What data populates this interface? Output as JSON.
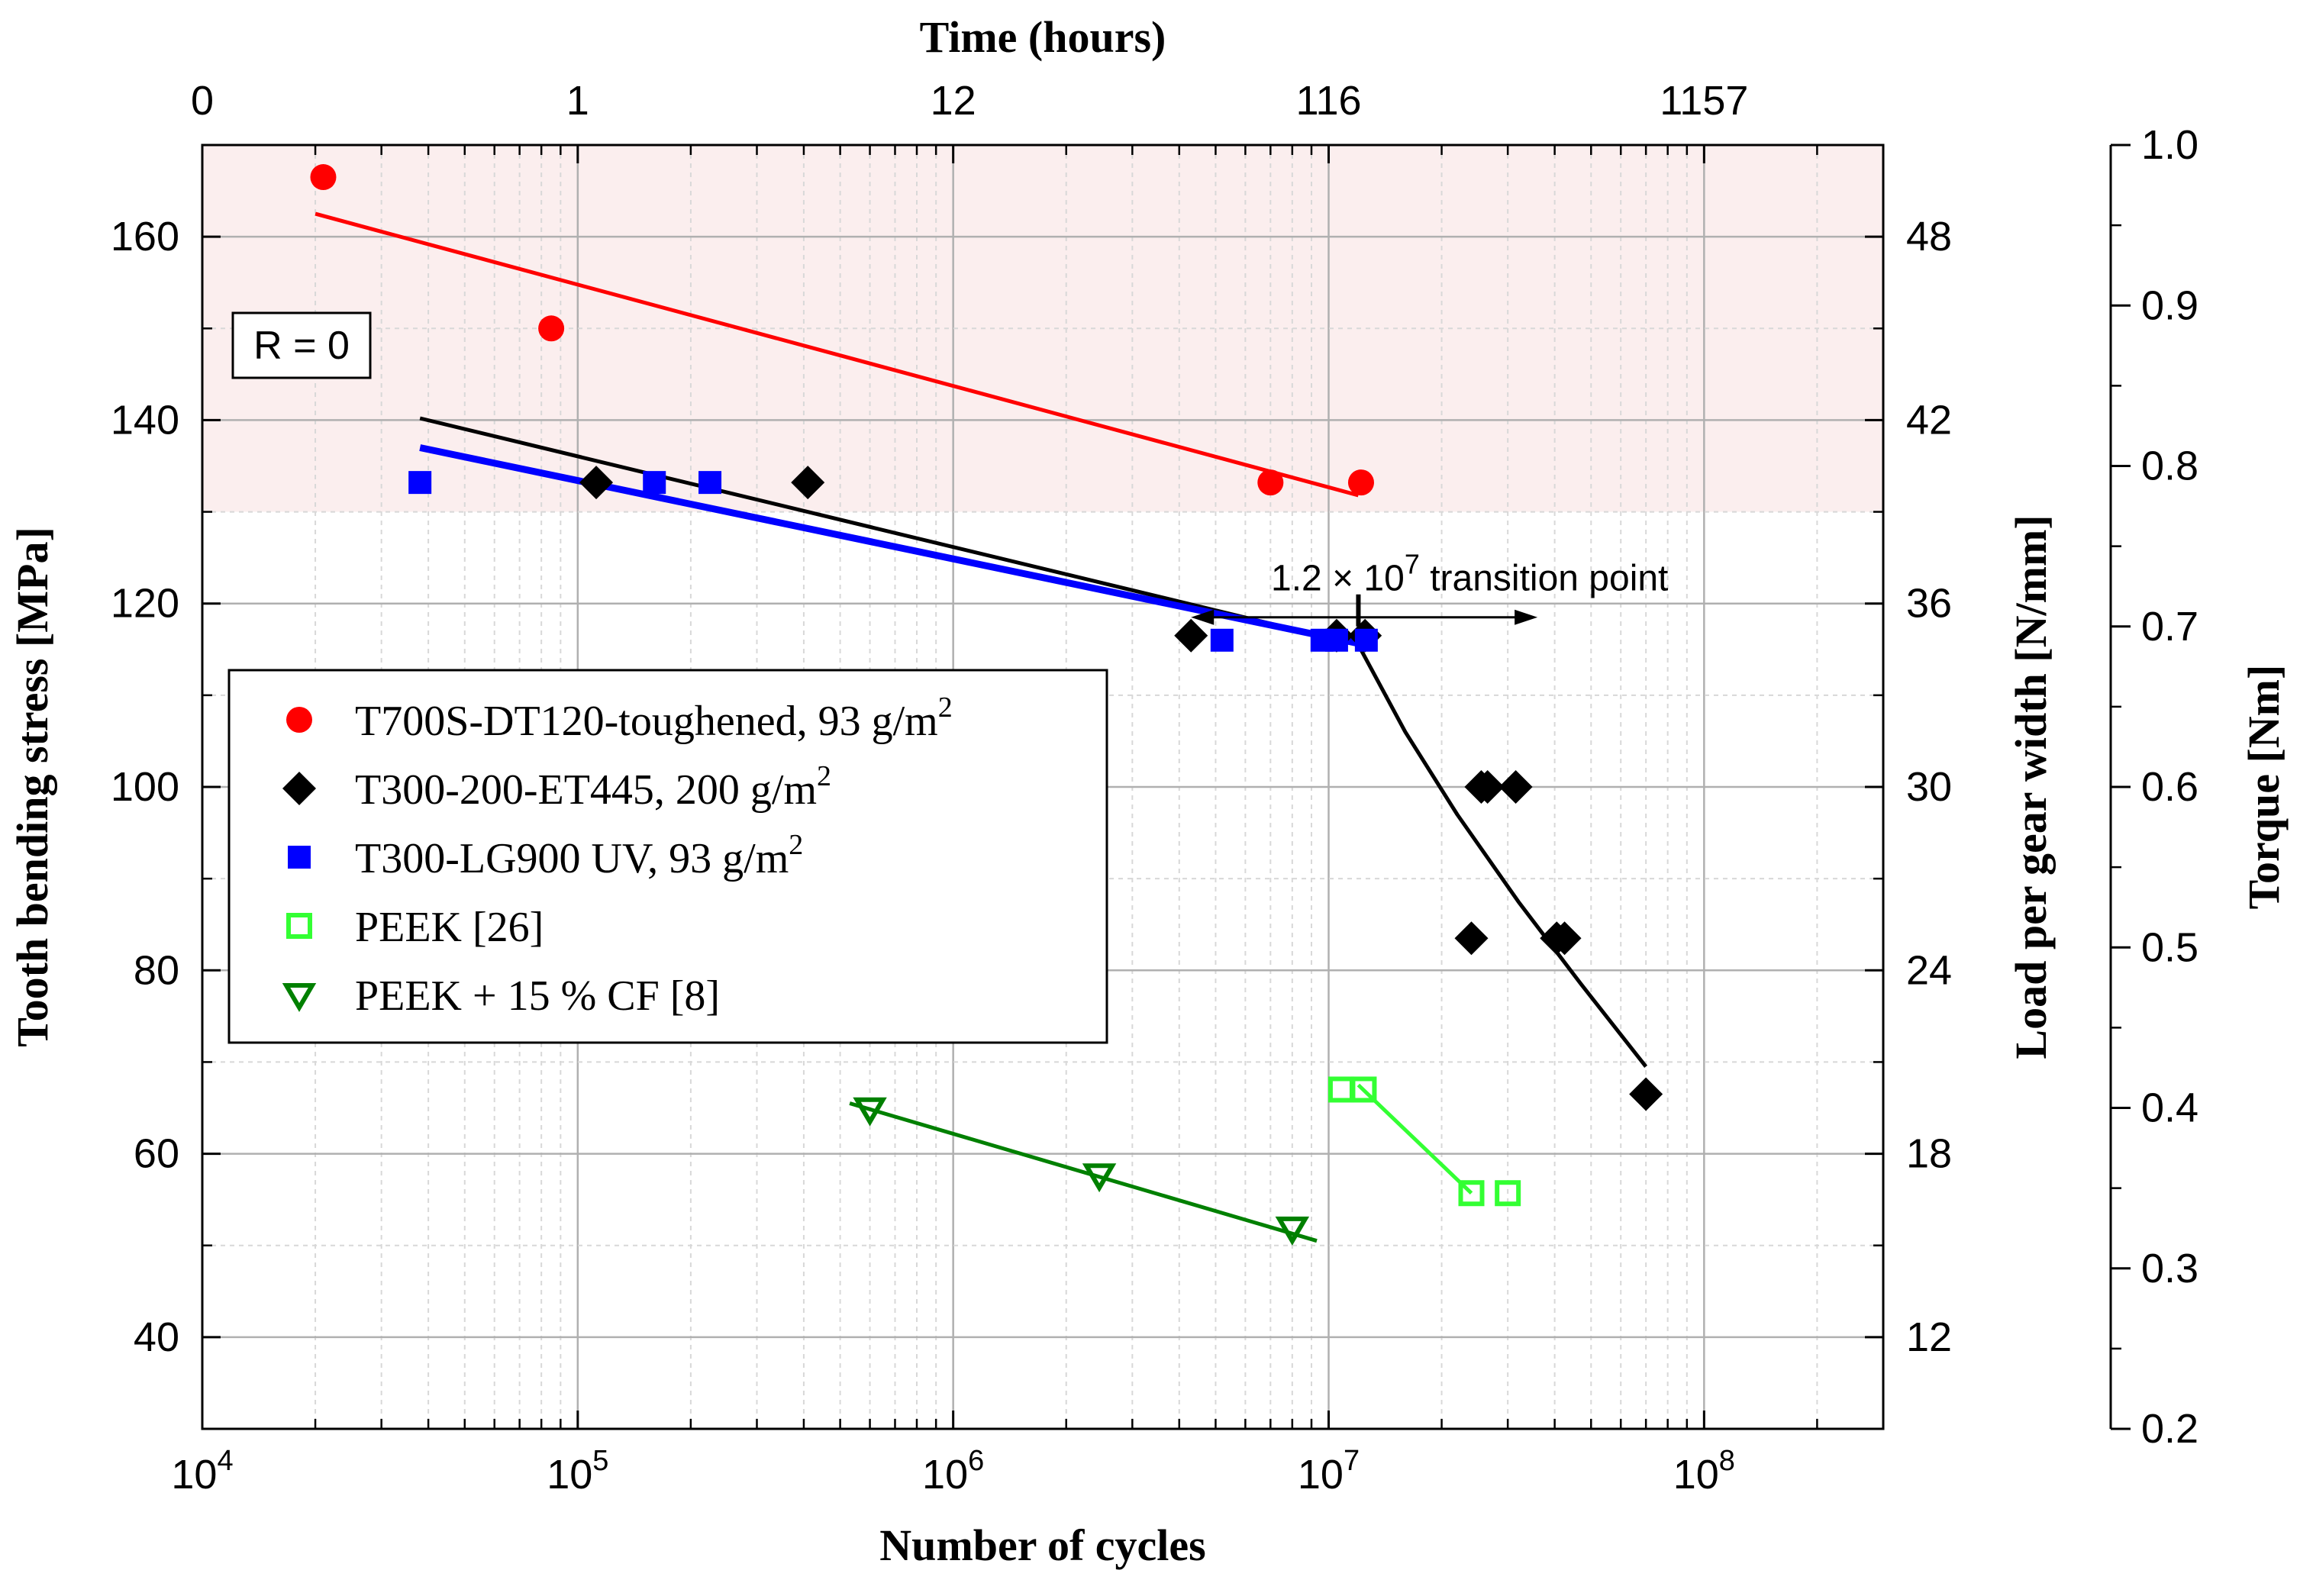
{
  "chart_data": {
    "type": "scatter",
    "title": "",
    "xlabel": "Number of cycles",
    "x_scale": "log",
    "xlim": [
      10000,
      300000000
    ],
    "x_ticks": [
      {
        "value": 10000,
        "base": "10",
        "exp": "4"
      },
      {
        "value": 100000,
        "base": "10",
        "exp": "5"
      },
      {
        "value": 1000000,
        "base": "10",
        "exp": "6"
      },
      {
        "value": 10000000,
        "base": "10",
        "exp": "7"
      },
      {
        "value": 100000000,
        "base": "10",
        "exp": "8"
      }
    ],
    "x2label": "Time (hours)",
    "x2_ticks": [
      {
        "value": 10000,
        "label": "0"
      },
      {
        "value": 100000,
        "label": "1"
      },
      {
        "value": 1000000,
        "label": "12"
      },
      {
        "value": 10000000,
        "label": "116"
      },
      {
        "value": 100000000,
        "label": "1157"
      }
    ],
    "ylabel": "Tooth bending stress [MPa]",
    "ylim": [
      30,
      170
    ],
    "y_ticks": [
      "40",
      "60",
      "80",
      "100",
      "120",
      "140",
      "160"
    ],
    "y2label": "Load per gear width [N/mm]",
    "y2_ticks": [
      {
        "value": 40,
        "label": "12"
      },
      {
        "value": 60,
        "label": "18"
      },
      {
        "value": 80,
        "label": "24"
      },
      {
        "value": 100,
        "label": "30"
      },
      {
        "value": 120,
        "label": "36"
      },
      {
        "value": 140,
        "label": "42"
      },
      {
        "value": 160,
        "label": "48"
      }
    ],
    "y3label": "Torque [Nm]",
    "y3lim": [
      0.2,
      1.0
    ],
    "y3_ticks": [
      "0.2",
      "0.3",
      "0.4",
      "0.5",
      "0.6",
      "0.7",
      "0.8",
      "0.9",
      "1.0"
    ],
    "grid": true,
    "shaded_band_y": [
      130,
      170
    ],
    "shaded_band_color": "#fbeeee",
    "series": [
      {
        "name": "T700S-DT120-toughened, 93 g/m",
        "name_sup": "2",
        "marker": "circle",
        "color": "#ff0000",
        "points": [
          [
            21000,
            166.5
          ],
          [
            85000,
            150
          ],
          [
            7000000,
            133.2
          ],
          [
            12200000,
            133.2
          ]
        ],
        "fit": [
          [
            20000,
            162.5
          ],
          [
            12000000,
            131.8
          ]
        ]
      },
      {
        "name": "T300-200-ET445, 200 g/m",
        "name_sup": "2",
        "marker": "diamond",
        "color": "#000000",
        "points": [
          [
            112000,
            133.2
          ],
          [
            410000,
            133.2
          ],
          [
            4300000,
            116.5
          ],
          [
            10500000,
            116.5
          ],
          [
            12500000,
            116.5
          ],
          [
            24000000,
            83.5
          ],
          [
            25500000,
            100
          ],
          [
            26500000,
            100
          ],
          [
            31500000,
            100
          ],
          [
            40500000,
            83.5
          ],
          [
            42500000,
            83.5
          ],
          [
            70000000,
            66.5
          ]
        ],
        "fit": [
          [
            38000,
            140.2
          ],
          [
            12000000,
            115.5
          ],
          [
            16000000,
            106
          ],
          [
            22000000,
            97
          ],
          [
            32000000,
            87.5
          ],
          [
            47000000,
            78.5
          ],
          [
            70000000,
            69.5
          ]
        ]
      },
      {
        "name": "T300-LG900 UV, 93 g/m",
        "name_sup": "2",
        "marker": "square",
        "color": "#0000ff",
        "points": [
          [
            38000,
            133.2
          ],
          [
            160000,
            133.2
          ],
          [
            225000,
            133.2
          ],
          [
            5200000,
            116
          ],
          [
            9600000,
            116
          ],
          [
            10500000,
            116
          ],
          [
            12600000,
            116
          ]
        ],
        "fit": [
          [
            38000,
            137
          ],
          [
            12500000,
            115.5
          ]
        ]
      },
      {
        "name": "PEEK [26]",
        "marker": "open-square",
        "color": "#33ff33",
        "points": [
          [
            10800000,
            67
          ],
          [
            12400000,
            67
          ],
          [
            24000000,
            55.7
          ],
          [
            30000000,
            55.7
          ]
        ],
        "fit": [
          [
            12000000,
            67.5
          ],
          [
            24000000,
            55.7
          ]
        ]
      },
      {
        "name": "PEEK + 15 % CF [8]",
        "marker": "open-triangle-down",
        "color": "#008000",
        "points": [
          [
            600000,
            64.9
          ],
          [
            2450000,
            57.7
          ],
          [
            8000000,
            51.9
          ]
        ],
        "fit": [
          [
            530000,
            65.5
          ],
          [
            9300000,
            50.5
          ]
        ]
      }
    ],
    "annotations": {
      "r_label": "R = 0",
      "transition_value": "1.2 × 10",
      "transition_sup": "7",
      "transition_text": "transition point",
      "transition_x": 12000000,
      "transition_y": 118.5,
      "transition_arrow_from": 4300000,
      "transition_arrow_to": 36000000
    }
  }
}
